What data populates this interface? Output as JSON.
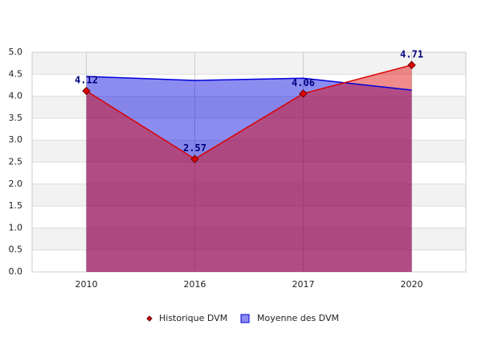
{
  "chart_data": {
    "type": "area",
    "categories": [
      "2010",
      "2016",
      "2017",
      "2020"
    ],
    "series": [
      {
        "name": "Historique DVM",
        "color": "#dd0000",
        "values": [
          4.12,
          2.57,
          4.06,
          4.71
        ]
      },
      {
        "name": "Moyenne des DVM",
        "color": "#0000dd",
        "values": [
          4.45,
          4.36,
          4.41,
          4.14
        ]
      }
    ],
    "ylim": [
      0,
      5
    ],
    "yticks": [
      {
        "value": 0,
        "label": "0.0"
      },
      {
        "value": 0.5,
        "label": "0.5"
      },
      {
        "value": 1,
        "label": "1.0"
      },
      {
        "value": 1.5,
        "label": "1.5"
      },
      {
        "value": 2,
        "label": "2.0"
      },
      {
        "value": 2.5,
        "label": "2.5"
      },
      {
        "value": 3,
        "label": "3.0"
      },
      {
        "value": 3.5,
        "label": "3.5"
      },
      {
        "value": 4,
        "label": "4.0"
      },
      {
        "value": 4.5,
        "label": "4.5"
      },
      {
        "value": 5,
        "label": "5.0"
      }
    ],
    "grid": true
  }
}
